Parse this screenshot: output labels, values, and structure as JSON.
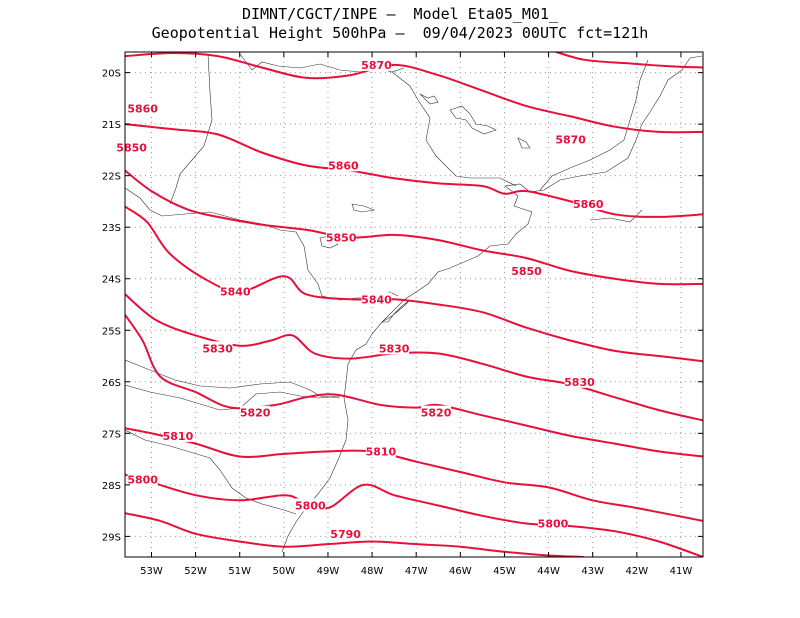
{
  "title": {
    "line1": "DIMNT/CGCT/INPE —  Model Eta05_M01_",
    "line2": "Geopotential Height 500hPa —  09/04/2023 00UTC fct=121h"
  },
  "map": {
    "lon_range": [
      -53.6,
      -40.5
    ],
    "lat_range": [
      -29.4,
      -19.6
    ],
    "lon_ticks": [
      {
        "v": -53,
        "label": "53W"
      },
      {
        "v": -52,
        "label": "52W"
      },
      {
        "v": -51,
        "label": "51W"
      },
      {
        "v": -50,
        "label": "50W"
      },
      {
        "v": -49,
        "label": "49W"
      },
      {
        "v": -48,
        "label": "48W"
      },
      {
        "v": -47,
        "label": "47W"
      },
      {
        "v": -46,
        "label": "46W"
      },
      {
        "v": -45,
        "label": "45W"
      },
      {
        "v": -44,
        "label": "44W"
      },
      {
        "v": -43,
        "label": "43W"
      },
      {
        "v": -42,
        "label": "42W"
      },
      {
        "v": -41,
        "label": "41W"
      }
    ],
    "lat_ticks": [
      {
        "v": -20,
        "label": "20S"
      },
      {
        "v": -21,
        "label": "21S"
      },
      {
        "v": -22,
        "label": "22S"
      },
      {
        "v": -23,
        "label": "23S"
      },
      {
        "v": -24,
        "label": "24S"
      },
      {
        "v": -25,
        "label": "25S"
      },
      {
        "v": -26,
        "label": "26S"
      },
      {
        "v": -27,
        "label": "27S"
      },
      {
        "v": -28,
        "label": "28S"
      },
      {
        "v": -29,
        "label": "29S"
      }
    ],
    "grid": true,
    "contour_color": "#e8103a",
    "label_color": "#e8103a",
    "contours": [
      {
        "level": 5870,
        "points": [
          [
            -53.6,
            -19.68
          ],
          [
            -52.5,
            -19.62
          ],
          [
            -51.5,
            -19.68
          ],
          [
            -50.5,
            -19.9
          ],
          [
            -49.5,
            -20.1
          ],
          [
            -48.5,
            -20.05
          ],
          [
            -47.5,
            -19.85
          ],
          [
            -46.5,
            -20.05
          ],
          [
            -45.5,
            -20.35
          ],
          [
            -44.5,
            -20.65
          ],
          [
            -43.5,
            -20.85
          ],
          [
            -42.5,
            -21.05
          ],
          [
            -41.5,
            -21.15
          ],
          [
            -40.5,
            -21.15
          ]
        ],
        "labels": [
          [
            -47.9,
            -19.85
          ],
          [
            -43.5,
            -21.3
          ]
        ]
      },
      {
        "level": 5870,
        "points": [
          [
            -44.0,
            -19.55
          ],
          [
            -43.2,
            -19.75
          ],
          [
            -42.2,
            -19.82
          ],
          [
            -41.2,
            -19.88
          ],
          [
            -40.5,
            -19.9
          ]
        ],
        "labels": []
      },
      {
        "level": 5860,
        "points": [
          [
            -53.6,
            -21.0
          ],
          [
            -52.5,
            -21.1
          ],
          [
            -51.5,
            -21.2
          ],
          [
            -50.5,
            -21.55
          ],
          [
            -49.5,
            -21.8
          ],
          [
            -48.5,
            -21.9
          ],
          [
            -47.5,
            -22.05
          ],
          [
            -46.5,
            -22.15
          ],
          [
            -45.5,
            -22.2
          ],
          [
            -45.0,
            -22.35
          ],
          [
            -44.5,
            -22.3
          ],
          [
            -43.5,
            -22.5
          ],
          [
            -42.5,
            -22.75
          ],
          [
            -41.5,
            -22.8
          ],
          [
            -40.5,
            -22.75
          ]
        ],
        "labels": [
          [
            -53.2,
            -20.7
          ],
          [
            -48.65,
            -21.8
          ],
          [
            -43.1,
            -22.55
          ]
        ]
      },
      {
        "level": 5850,
        "points": [
          [
            -53.6,
            -21.9
          ],
          [
            -53.0,
            -22.3
          ],
          [
            -52.2,
            -22.65
          ],
          [
            -51.5,
            -22.8
          ],
          [
            -50.5,
            -22.95
          ],
          [
            -49.5,
            -23.05
          ],
          [
            -48.5,
            -23.2
          ],
          [
            -47.5,
            -23.15
          ],
          [
            -46.5,
            -23.25
          ],
          [
            -45.5,
            -23.45
          ],
          [
            -44.5,
            -23.6
          ],
          [
            -43.5,
            -23.85
          ],
          [
            -42.5,
            -24.0
          ],
          [
            -41.5,
            -24.1
          ],
          [
            -40.5,
            -24.1
          ]
        ],
        "labels": [
          [
            -53.45,
            -21.45
          ],
          [
            -48.7,
            -23.2
          ],
          [
            -44.5,
            -23.85
          ]
        ]
      },
      {
        "level": 5840,
        "points": [
          [
            -53.6,
            -22.6
          ],
          [
            -53.1,
            -22.9
          ],
          [
            -52.6,
            -23.5
          ],
          [
            -51.8,
            -24.0
          ],
          [
            -51.0,
            -24.25
          ],
          [
            -50.0,
            -23.95
          ],
          [
            -49.5,
            -24.3
          ],
          [
            -48.5,
            -24.4
          ],
          [
            -47.5,
            -24.4
          ],
          [
            -46.5,
            -24.5
          ],
          [
            -45.5,
            -24.65
          ],
          [
            -44.5,
            -24.95
          ],
          [
            -43.5,
            -25.2
          ],
          [
            -42.5,
            -25.4
          ],
          [
            -41.5,
            -25.5
          ],
          [
            -40.5,
            -25.6
          ]
        ],
        "labels": [
          [
            -51.1,
            -24.25
          ],
          [
            -47.9,
            -24.4
          ]
        ]
      },
      {
        "level": 5830,
        "points": [
          [
            -53.6,
            -24.3
          ],
          [
            -52.9,
            -24.8
          ],
          [
            -52.0,
            -25.1
          ],
          [
            -51.0,
            -25.3
          ],
          [
            -50.3,
            -25.2
          ],
          [
            -49.8,
            -25.1
          ],
          [
            -49.3,
            -25.45
          ],
          [
            -48.5,
            -25.55
          ],
          [
            -47.5,
            -25.45
          ],
          [
            -46.5,
            -25.45
          ],
          [
            -45.5,
            -25.65
          ],
          [
            -44.5,
            -25.9
          ],
          [
            -43.5,
            -26.05
          ],
          [
            -42.5,
            -26.3
          ],
          [
            -41.5,
            -26.55
          ],
          [
            -40.5,
            -26.75
          ]
        ],
        "labels": [
          [
            -51.5,
            -25.35
          ],
          [
            -47.5,
            -25.35
          ],
          [
            -43.3,
            -26.0
          ]
        ]
      },
      {
        "level": 5820,
        "points": [
          [
            -53.6,
            -24.7
          ],
          [
            -53.2,
            -25.2
          ],
          [
            -52.8,
            -25.9
          ],
          [
            -52.0,
            -26.2
          ],
          [
            -51.2,
            -26.5
          ],
          [
            -50.2,
            -26.45
          ],
          [
            -49.5,
            -26.3
          ],
          [
            -48.8,
            -26.25
          ],
          [
            -47.8,
            -26.45
          ],
          [
            -47.0,
            -26.5
          ],
          [
            -46.5,
            -26.45
          ],
          [
            -45.5,
            -26.65
          ],
          [
            -44.5,
            -26.85
          ],
          [
            -43.5,
            -27.05
          ],
          [
            -42.5,
            -27.2
          ],
          [
            -41.5,
            -27.35
          ],
          [
            -40.5,
            -27.45
          ]
        ],
        "labels": [
          [
            -50.65,
            -26.6
          ],
          [
            -46.55,
            -26.6
          ]
        ]
      },
      {
        "level": 5810,
        "points": [
          [
            -53.6,
            -26.9
          ],
          [
            -53.0,
            -27.0
          ],
          [
            -52.0,
            -27.2
          ],
          [
            -51.0,
            -27.45
          ],
          [
            -50.0,
            -27.4
          ],
          [
            -49.0,
            -27.35
          ],
          [
            -48.0,
            -27.35
          ],
          [
            -47.0,
            -27.55
          ],
          [
            -46.0,
            -27.75
          ],
          [
            -45.0,
            -27.95
          ],
          [
            -44.0,
            -28.05
          ],
          [
            -43.0,
            -28.3
          ],
          [
            -42.0,
            -28.45
          ],
          [
            -40.5,
            -28.7
          ]
        ],
        "labels": [
          [
            -52.4,
            -27.05
          ],
          [
            -47.8,
            -27.35
          ]
        ]
      },
      {
        "level": 5800,
        "points": [
          [
            -53.6,
            -27.8
          ],
          [
            -53.0,
            -27.95
          ],
          [
            -52.0,
            -28.2
          ],
          [
            -51.0,
            -28.3
          ],
          [
            -50.0,
            -28.2
          ],
          [
            -49.6,
            -28.3
          ],
          [
            -49.0,
            -28.45
          ],
          [
            -48.2,
            -28.0
          ],
          [
            -47.5,
            -28.2
          ],
          [
            -46.5,
            -28.4
          ],
          [
            -45.5,
            -28.6
          ],
          [
            -44.5,
            -28.75
          ],
          [
            -43.5,
            -28.8
          ],
          [
            -42.5,
            -28.9
          ],
          [
            -41.5,
            -29.1
          ],
          [
            -40.5,
            -29.4
          ]
        ],
        "labels": [
          [
            -53.2,
            -27.9
          ],
          [
            -49.4,
            -28.4
          ],
          [
            -43.9,
            -28.75
          ]
        ]
      },
      {
        "level": 5790,
        "points": [
          [
            -53.6,
            -28.55
          ],
          [
            -52.8,
            -28.7
          ],
          [
            -52.0,
            -28.95
          ],
          [
            -51.0,
            -29.1
          ],
          [
            -50.0,
            -29.2
          ],
          [
            -49.0,
            -29.15
          ],
          [
            -48.0,
            -29.1
          ],
          [
            -47.0,
            -29.15
          ],
          [
            -46.0,
            -29.2
          ],
          [
            -45.0,
            -29.3
          ],
          [
            -44.0,
            -29.37
          ],
          [
            -43.2,
            -29.4
          ]
        ],
        "labels": [
          [
            -48.6,
            -28.95
          ]
        ]
      }
    ]
  }
}
